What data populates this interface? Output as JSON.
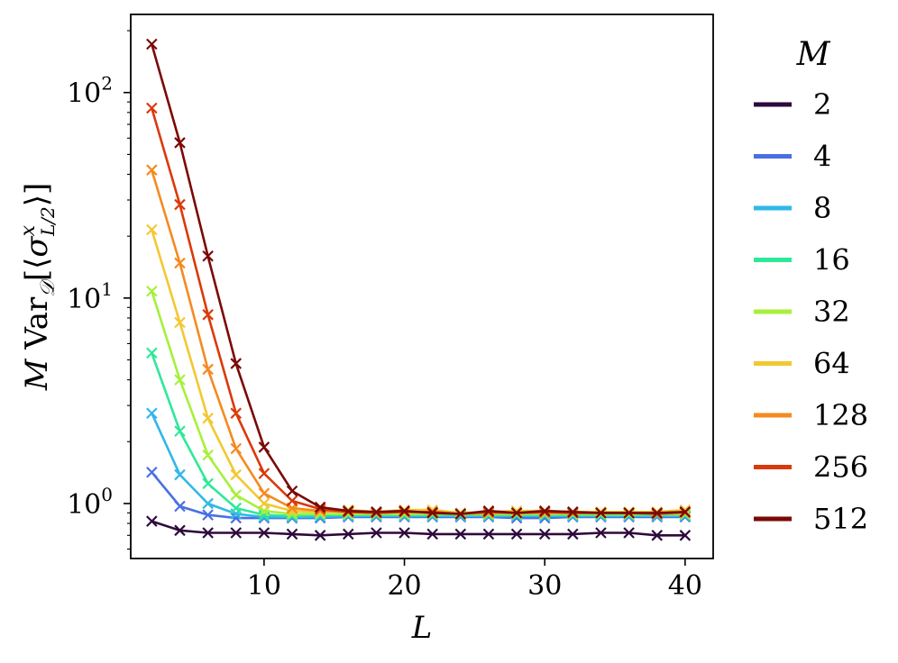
{
  "chart_data": {
    "type": "line",
    "xlabel": "L",
    "ylabel": "M Var_D[⟨σ^x_{L/2}⟩]",
    "yscale": "log",
    "xlim": [
      0.5,
      42
    ],
    "ylim": [
      0.54,
      240
    ],
    "x_ticks": [
      10,
      20,
      30,
      40
    ],
    "x_tick_labels": [
      "10",
      "20",
      "30",
      "40"
    ],
    "y_ticks": [
      1,
      10,
      100
    ],
    "y_tick_labels": [
      {
        "base": "10",
        "exp": "0"
      },
      {
        "base": "10",
        "exp": "1"
      },
      {
        "base": "10",
        "exp": "2"
      }
    ],
    "grid": false,
    "marker": "x",
    "legend": {
      "title": "M",
      "placement": "outside-right"
    },
    "x": [
      2,
      4,
      6,
      8,
      10,
      12,
      14,
      16,
      18,
      20,
      22,
      24,
      26,
      28,
      30,
      32,
      34,
      36,
      38,
      40
    ],
    "series": [
      {
        "name": "2",
        "color": "#2e0a3c",
        "values": [
          0.82,
          0.74,
          0.72,
          0.72,
          0.72,
          0.71,
          0.7,
          0.71,
          0.72,
          0.72,
          0.71,
          0.71,
          0.71,
          0.71,
          0.71,
          0.71,
          0.72,
          0.72,
          0.7,
          0.7
        ]
      },
      {
        "name": "4",
        "color": "#4a6fe3",
        "values": [
          1.42,
          0.97,
          0.88,
          0.85,
          0.85,
          0.85,
          0.85,
          0.86,
          0.86,
          0.86,
          0.86,
          0.86,
          0.86,
          0.85,
          0.85,
          0.86,
          0.86,
          0.86,
          0.86,
          0.86
        ]
      },
      {
        "name": "8",
        "color": "#2fb8e8",
        "values": [
          2.75,
          1.38,
          1.0,
          0.89,
          0.86,
          0.86,
          0.86,
          0.87,
          0.87,
          0.87,
          0.87,
          0.87,
          0.87,
          0.87,
          0.87,
          0.87,
          0.87,
          0.87,
          0.87,
          0.87
        ]
      },
      {
        "name": "16",
        "color": "#2ee89a",
        "values": [
          5.4,
          2.25,
          1.25,
          0.95,
          0.88,
          0.87,
          0.88,
          0.88,
          0.88,
          0.88,
          0.88,
          0.88,
          0.88,
          0.88,
          0.88,
          0.88,
          0.88,
          0.88,
          0.88,
          0.88
        ]
      },
      {
        "name": "32",
        "color": "#a6f03a",
        "values": [
          10.8,
          4.0,
          1.72,
          1.1,
          0.92,
          0.89,
          0.89,
          0.89,
          0.89,
          0.89,
          0.89,
          0.89,
          0.89,
          0.89,
          0.89,
          0.89,
          0.89,
          0.89,
          0.89,
          0.89
        ]
      },
      {
        "name": "64",
        "color": "#f2c832",
        "values": [
          21.5,
          7.6,
          2.6,
          1.38,
          1.0,
          0.92,
          0.91,
          0.93,
          0.91,
          0.93,
          0.93,
          0.9,
          0.91,
          0.92,
          0.92,
          0.91,
          0.91,
          0.91,
          0.91,
          0.93
        ]
      },
      {
        "name": "128",
        "color": "#f58a20",
        "values": [
          42,
          14.8,
          4.5,
          1.85,
          1.12,
          0.95,
          0.92,
          0.91,
          0.9,
          0.91,
          0.9,
          0.89,
          0.9,
          0.9,
          0.9,
          0.9,
          0.9,
          0.9,
          0.89,
          0.9
        ]
      },
      {
        "name": "256",
        "color": "#d93a0a",
        "values": [
          84,
          28.5,
          8.3,
          2.75,
          1.4,
          1.03,
          0.94,
          0.91,
          0.9,
          0.91,
          0.91,
          0.89,
          0.91,
          0.9,
          0.91,
          0.9,
          0.9,
          0.9,
          0.89,
          0.91
        ]
      },
      {
        "name": "512",
        "color": "#7a0a06",
        "values": [
          172,
          57,
          16,
          4.8,
          1.88,
          1.15,
          0.96,
          0.92,
          0.91,
          0.92,
          0.9,
          0.89,
          0.92,
          0.9,
          0.92,
          0.91,
          0.9,
          0.9,
          0.9,
          0.91
        ]
      }
    ]
  }
}
